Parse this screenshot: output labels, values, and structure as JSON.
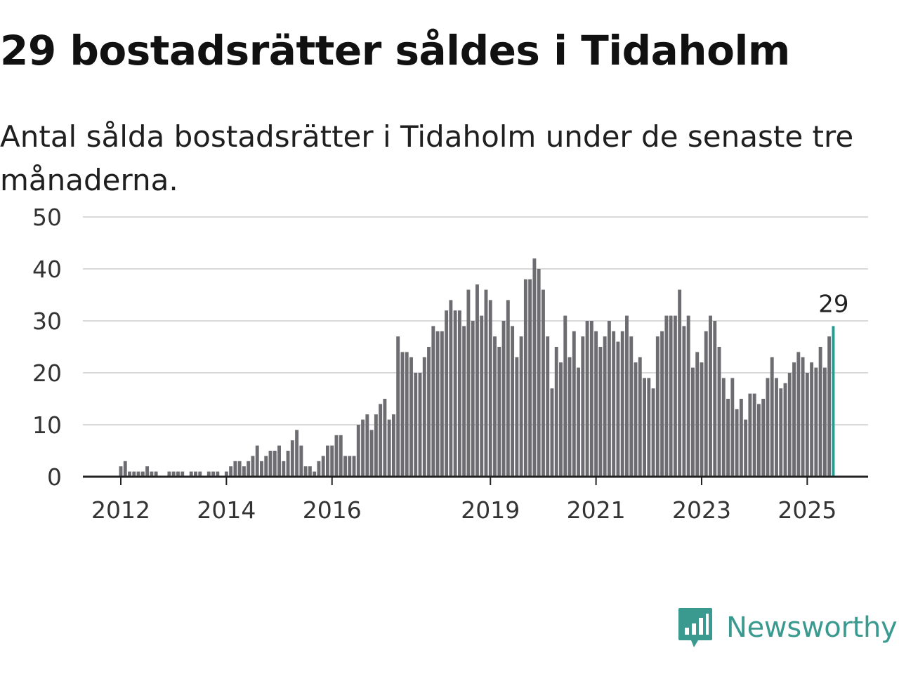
{
  "title": "29 bostadsrätter såldes i Tidaholm",
  "subtitle": "Antal sålda bostadsrätter i Tidaholm under de senaste tre månaderna.",
  "brand": {
    "name": "Newsworthy",
    "icon": "newsworthy-logo-icon",
    "color": "#3a9a90"
  },
  "chart_data": {
    "type": "bar",
    "title": "29 bostadsrätter såldes i Tidaholm",
    "subtitle": "Antal sålda bostadsrätter i Tidaholm under de senaste tre månaderna.",
    "ylim": [
      0,
      50
    ],
    "yticks": [
      0,
      10,
      20,
      30,
      40,
      50
    ],
    "xticks": [
      {
        "label": "2012",
        "index": 0
      },
      {
        "label": "2014",
        "index": 24
      },
      {
        "label": "2016",
        "index": 48
      },
      {
        "label": "2019",
        "index": 84
      },
      {
        "label": "2021",
        "index": 108
      },
      {
        "label": "2023",
        "index": 132
      },
      {
        "label": "2025",
        "index": 156
      }
    ],
    "start": "2012-01",
    "grid": true,
    "bar_color": "#6d6c71",
    "highlight_color": "#1f9e94",
    "highlight_label": "29",
    "values": [
      2,
      3,
      1,
      1,
      1,
      1,
      2,
      1,
      1,
      0,
      0,
      1,
      1,
      1,
      1,
      0,
      1,
      1,
      1,
      0,
      1,
      1,
      1,
      0,
      1,
      2,
      3,
      3,
      2,
      3,
      4,
      6,
      3,
      4,
      5,
      5,
      6,
      3,
      5,
      7,
      9,
      6,
      2,
      2,
      1,
      3,
      4,
      6,
      6,
      8,
      8,
      4,
      4,
      4,
      10,
      11,
      12,
      9,
      12,
      14,
      15,
      11,
      12,
      27,
      24,
      24,
      23,
      20,
      20,
      23,
      25,
      29,
      28,
      28,
      32,
      34,
      32,
      32,
      29,
      36,
      30,
      37,
      31,
      36,
      34,
      27,
      25,
      30,
      34,
      29,
      23,
      27,
      38,
      38,
      42,
      40,
      36,
      27,
      17,
      25,
      22,
      31,
      23,
      28,
      21,
      27,
      30,
      30,
      28,
      25,
      27,
      30,
      28,
      26,
      28,
      31,
      27,
      22,
      23,
      19,
      19,
      17,
      27,
      28,
      31,
      31,
      31,
      36,
      29,
      31,
      21,
      24,
      22,
      28,
      31,
      30,
      25,
      19,
      15,
      19,
      13,
      15,
      11,
      16,
      16,
      14,
      15,
      19,
      23,
      19,
      17,
      18,
      20,
      22,
      24,
      23,
      20,
      22,
      21,
      25,
      21,
      27,
      29
    ]
  }
}
